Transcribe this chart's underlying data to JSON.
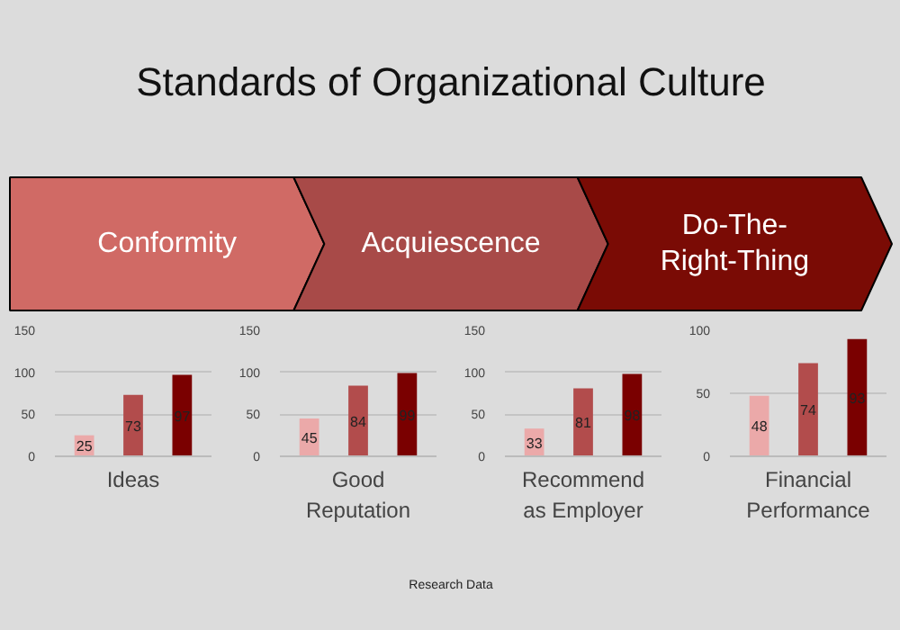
{
  "chart_data": [
    {
      "type": "other",
      "title": "Standards of Organizational Culture",
      "categories": [
        "Conformity",
        "Acquiescence",
        "Do-The-Right-Thing"
      ],
      "colors": [
        "#d06a65",
        "#a84a48",
        "#7a0b05"
      ],
      "annotations": [
        "Research Data"
      ]
    },
    {
      "type": "bar",
      "xlabel": "Ideas",
      "categories": [
        null,
        null,
        null
      ],
      "values": [
        25,
        73,
        97
      ],
      "colors": [
        "#eba9a9",
        "#b24c4c",
        "#7a0000"
      ],
      "data_labels": true,
      "ylim": [
        0,
        150
      ],
      "yticks": [
        0,
        50,
        100,
        150
      ],
      "grid": "y"
    },
    {
      "type": "bar",
      "xlabel": "Good Reputation",
      "categories": [
        null,
        null,
        null
      ],
      "values": [
        45,
        84,
        99
      ],
      "colors": [
        "#eba9a9",
        "#b24c4c",
        "#7a0000"
      ],
      "data_labels": true,
      "ylim": [
        0,
        150
      ],
      "yticks": [
        0,
        50,
        100,
        150
      ],
      "grid": "y"
    },
    {
      "type": "bar",
      "xlabel": "Recommend as Employer",
      "categories": [
        null,
        null,
        null
      ],
      "values": [
        33,
        81,
        98
      ],
      "colors": [
        "#eba9a9",
        "#b24c4c",
        "#7a0000"
      ],
      "data_labels": true,
      "ylim": [
        0,
        150
      ],
      "yticks": [
        0,
        50,
        100,
        150
      ],
      "grid": "y"
    },
    {
      "type": "bar",
      "xlabel": "Financial Performance",
      "categories": [
        null,
        null,
        null
      ],
      "values": [
        48,
        74,
        93
      ],
      "colors": [
        "#eba9a9",
        "#b24c4c",
        "#7a0000"
      ],
      "data_labels": true,
      "ylim": [
        0,
        100
      ],
      "yticks": [
        0,
        50,
        100
      ],
      "grid": "y"
    }
  ]
}
